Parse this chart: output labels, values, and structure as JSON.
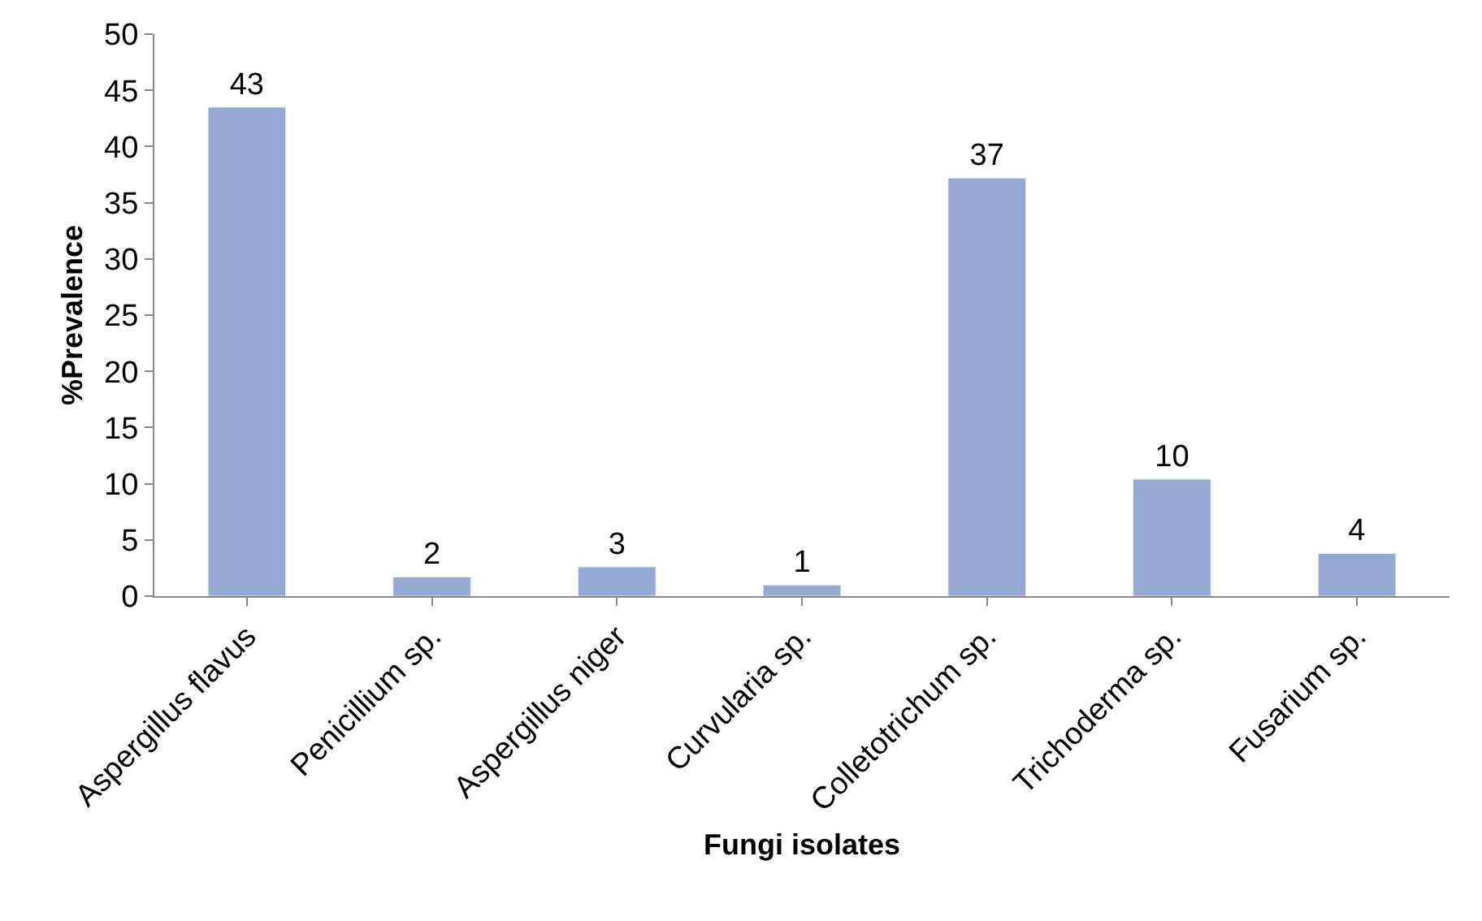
{
  "chart_data": {
    "type": "bar",
    "xlabel": "Fungi isolates",
    "ylabel": "%Prevalence",
    "categories": [
      "Aspergillus flavus",
      "Penicillium sp.",
      "Aspergillus niger",
      "Curvularia sp.",
      "Colletotrichum sp.",
      "Trichoderma sp.",
      "Fusarium sp."
    ],
    "values": [
      43.5,
      1.7,
      2.6,
      1.0,
      37.2,
      10.4,
      3.8
    ],
    "value_labels": [
      "43",
      "2",
      "3",
      "1",
      "37",
      "10",
      "4"
    ],
    "color": "#95a9d3",
    "ylim": [
      0,
      50
    ],
    "yticks": [
      0,
      5,
      10,
      15,
      20,
      25,
      30,
      35,
      40,
      45,
      50
    ]
  }
}
